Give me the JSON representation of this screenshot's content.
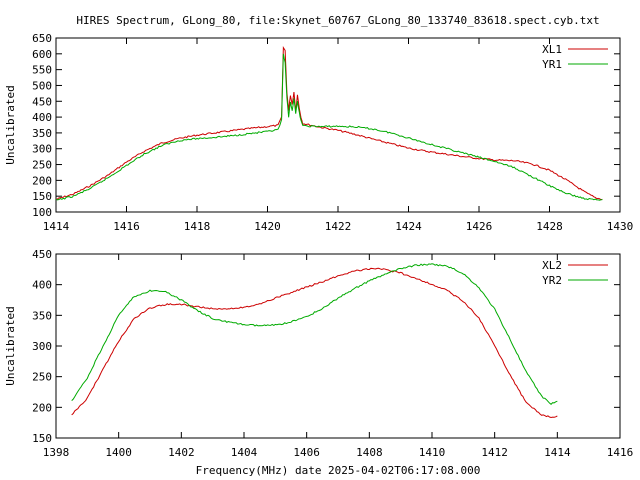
{
  "title": "HIRES Spectrum, GLong_80, file:Skynet_60767_GLong_80_133740_83618.spect.cyb.txt",
  "xlabel_bottom": "Frequency(MHz) date 2025-04-02T06:17:08.000",
  "colors": {
    "red": "#cc0000",
    "green": "#00aa00"
  },
  "chart_data": [
    {
      "type": "line",
      "title": "HIRES Spectrum, GLong_80, file:Skynet_60767_GLong_80_133740_83618.spect.cyb.txt",
      "ylabel": "Uncalibrated",
      "xlabel": "",
      "xlim": [
        1414,
        1430
      ],
      "ylim": [
        100,
        650
      ],
      "xticks": [
        "1414",
        "1416",
        "1418",
        "1420",
        "1422",
        "1424",
        "1426",
        "1428",
        "1430"
      ],
      "yticks": [
        "100",
        "150",
        "200",
        "250",
        "300",
        "350",
        "400",
        "450",
        "500",
        "550",
        "600",
        "650"
      ],
      "legend": "top-right",
      "series": [
        {
          "name": "XL1",
          "color": "#cc0000",
          "points": [
            [
              1414,
              140
            ],
            [
              1414.5,
              157
            ],
            [
              1415,
              185
            ],
            [
              1415.5,
              218
            ],
            [
              1416,
              258
            ],
            [
              1416.5,
              292
            ],
            [
              1417,
              318
            ],
            [
              1417.5,
              333
            ],
            [
              1418,
              343
            ],
            [
              1418.5,
              350
            ],
            [
              1419,
              357
            ],
            [
              1419.5,
              364
            ],
            [
              1420,
              370
            ],
            [
              1420.3,
              374
            ],
            [
              1420.4,
              400
            ],
            [
              1420.45,
              620
            ],
            [
              1420.5,
              610
            ],
            [
              1420.55,
              480
            ],
            [
              1420.6,
              420
            ],
            [
              1420.65,
              470
            ],
            [
              1420.7,
              440
            ],
            [
              1420.75,
              480
            ],
            [
              1420.8,
              420
            ],
            [
              1420.85,
              470
            ],
            [
              1420.9,
              430
            ],
            [
              1420.95,
              400
            ],
            [
              1421,
              380
            ],
            [
              1421.5,
              368
            ],
            [
              1422,
              358
            ],
            [
              1422.5,
              345
            ],
            [
              1423,
              330
            ],
            [
              1423.5,
              316
            ],
            [
              1424,
              302
            ],
            [
              1424.5,
              292
            ],
            [
              1425,
              284
            ],
            [
              1425.5,
              276
            ],
            [
              1426,
              269
            ],
            [
              1426.5,
              264
            ],
            [
              1427,
              262
            ],
            [
              1427.5,
              252
            ],
            [
              1428,
              232
            ],
            [
              1428.5,
              200
            ],
            [
              1429,
              163
            ],
            [
              1429.3,
              145
            ],
            [
              1429.5,
              140
            ]
          ]
        },
        {
          "name": "YR1",
          "color": "#00aa00",
          "points": [
            [
              1414,
              137
            ],
            [
              1414.5,
              150
            ],
            [
              1415,
              176
            ],
            [
              1415.5,
              210
            ],
            [
              1416,
              247
            ],
            [
              1416.5,
              283
            ],
            [
              1417,
              310
            ],
            [
              1417.5,
              326
            ],
            [
              1418,
              332
            ],
            [
              1418.5,
              336
            ],
            [
              1419,
              341
            ],
            [
              1419.5,
              348
            ],
            [
              1420,
              354
            ],
            [
              1420.3,
              360
            ],
            [
              1420.4,
              390
            ],
            [
              1420.45,
              600
            ],
            [
              1420.5,
              570
            ],
            [
              1420.55,
              460
            ],
            [
              1420.6,
              400
            ],
            [
              1420.65,
              450
            ],
            [
              1420.7,
              420
            ],
            [
              1420.75,
              460
            ],
            [
              1420.8,
              410
            ],
            [
              1420.85,
              450
            ],
            [
              1420.9,
              415
            ],
            [
              1420.95,
              390
            ],
            [
              1421,
              372
            ],
            [
              1421.5,
              370
            ],
            [
              1422,
              371
            ],
            [
              1422.5,
              369
            ],
            [
              1423,
              362
            ],
            [
              1423.5,
              350
            ],
            [
              1424,
              334
            ],
            [
              1424.5,
              318
            ],
            [
              1425,
              303
            ],
            [
              1425.5,
              288
            ],
            [
              1426,
              273
            ],
            [
              1426.5,
              258
            ],
            [
              1427,
              240
            ],
            [
              1427.5,
              212
            ],
            [
              1428,
              183
            ],
            [
              1428.5,
              158
            ],
            [
              1429,
              142
            ],
            [
              1429.3,
              139
            ],
            [
              1429.5,
              139
            ]
          ]
        }
      ]
    },
    {
      "type": "line",
      "ylabel": "Uncalibrated",
      "xlabel": "Frequency(MHz) date 2025-04-02T06:17:08.000",
      "xlim": [
        1398,
        1416
      ],
      "ylim": [
        150,
        450
      ],
      "xticks": [
        "1398",
        "1400",
        "1402",
        "1404",
        "1406",
        "1408",
        "1410",
        "1412",
        "1414",
        "1416"
      ],
      "yticks": [
        "150",
        "200",
        "250",
        "300",
        "350",
        "400",
        "450"
      ],
      "legend": "top-right",
      "series": [
        {
          "name": "XL2",
          "color": "#cc0000",
          "points": [
            [
              1398.5,
              188
            ],
            [
              1399,
              215
            ],
            [
              1399.5,
              262
            ],
            [
              1400,
              308
            ],
            [
              1400.5,
              345
            ],
            [
              1401,
              362
            ],
            [
              1401.5,
              368
            ],
            [
              1402,
              368
            ],
            [
              1402.5,
              364
            ],
            [
              1403,
              361
            ],
            [
              1403.5,
              361
            ],
            [
              1404,
              363
            ],
            [
              1404.5,
              369
            ],
            [
              1405,
              378
            ],
            [
              1405.5,
              387
            ],
            [
              1406,
              396
            ],
            [
              1406.5,
              405
            ],
            [
              1407,
              414
            ],
            [
              1407.5,
              422
            ],
            [
              1408,
              426
            ],
            [
              1408.5,
              425
            ],
            [
              1409,
              419
            ],
            [
              1409.5,
              410
            ],
            [
              1410,
              400
            ],
            [
              1410.5,
              390
            ],
            [
              1411,
              373
            ],
            [
              1411.5,
              345
            ],
            [
              1412,
              300
            ],
            [
              1412.5,
              252
            ],
            [
              1413,
              208
            ],
            [
              1413.5,
              187
            ],
            [
              1413.8,
              184
            ],
            [
              1414,
              186
            ]
          ]
        },
        {
          "name": "YR2",
          "color": "#00aa00",
          "points": [
            [
              1398.5,
              210
            ],
            [
              1399,
              248
            ],
            [
              1399.5,
              300
            ],
            [
              1400,
              350
            ],
            [
              1400.5,
              381
            ],
            [
              1401,
              390
            ],
            [
              1401.5,
              388
            ],
            [
              1402,
              375
            ],
            [
              1402.5,
              358
            ],
            [
              1403,
              345
            ],
            [
              1403.5,
              339
            ],
            [
              1404,
              335
            ],
            [
              1404.5,
              333
            ],
            [
              1405,
              334
            ],
            [
              1405.5,
              339
            ],
            [
              1406,
              348
            ],
            [
              1406.5,
              361
            ],
            [
              1407,
              378
            ],
            [
              1407.5,
              393
            ],
            [
              1408,
              406
            ],
            [
              1408.5,
              417
            ],
            [
              1409,
              426
            ],
            [
              1409.5,
              432
            ],
            [
              1410,
              433
            ],
            [
              1410.5,
              430
            ],
            [
              1411,
              418
            ],
            [
              1411.5,
              395
            ],
            [
              1412,
              360
            ],
            [
              1412.5,
              310
            ],
            [
              1413,
              258
            ],
            [
              1413.5,
              218
            ],
            [
              1413.8,
              206
            ],
            [
              1414,
              210
            ]
          ]
        }
      ]
    }
  ]
}
